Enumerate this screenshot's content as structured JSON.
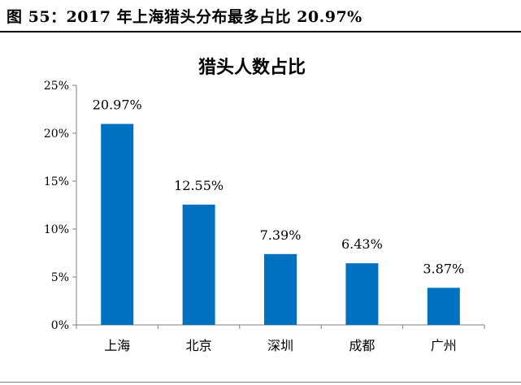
{
  "figure": {
    "title": "图 55：2017 年上海猎头分布最多占比 20.97%"
  },
  "chart_data": {
    "type": "bar",
    "title": "猎头人数占比",
    "categories": [
      "上海",
      "北京",
      "深圳",
      "成都",
      "广州"
    ],
    "values": [
      20.97,
      12.55,
      7.39,
      6.43,
      3.87
    ],
    "value_labels": [
      "20.97%",
      "12.55%",
      "7.39%",
      "6.43%",
      "3.87%"
    ],
    "ylim": [
      0,
      25
    ],
    "yticks": [
      0,
      5,
      10,
      15,
      20,
      25
    ],
    "ytick_labels": [
      "0%",
      "5%",
      "10%",
      "15%",
      "20%",
      "25%"
    ],
    "xlabel": "",
    "ylabel": "",
    "bar_color": "#0070C0",
    "grid": false,
    "legend": "none"
  }
}
